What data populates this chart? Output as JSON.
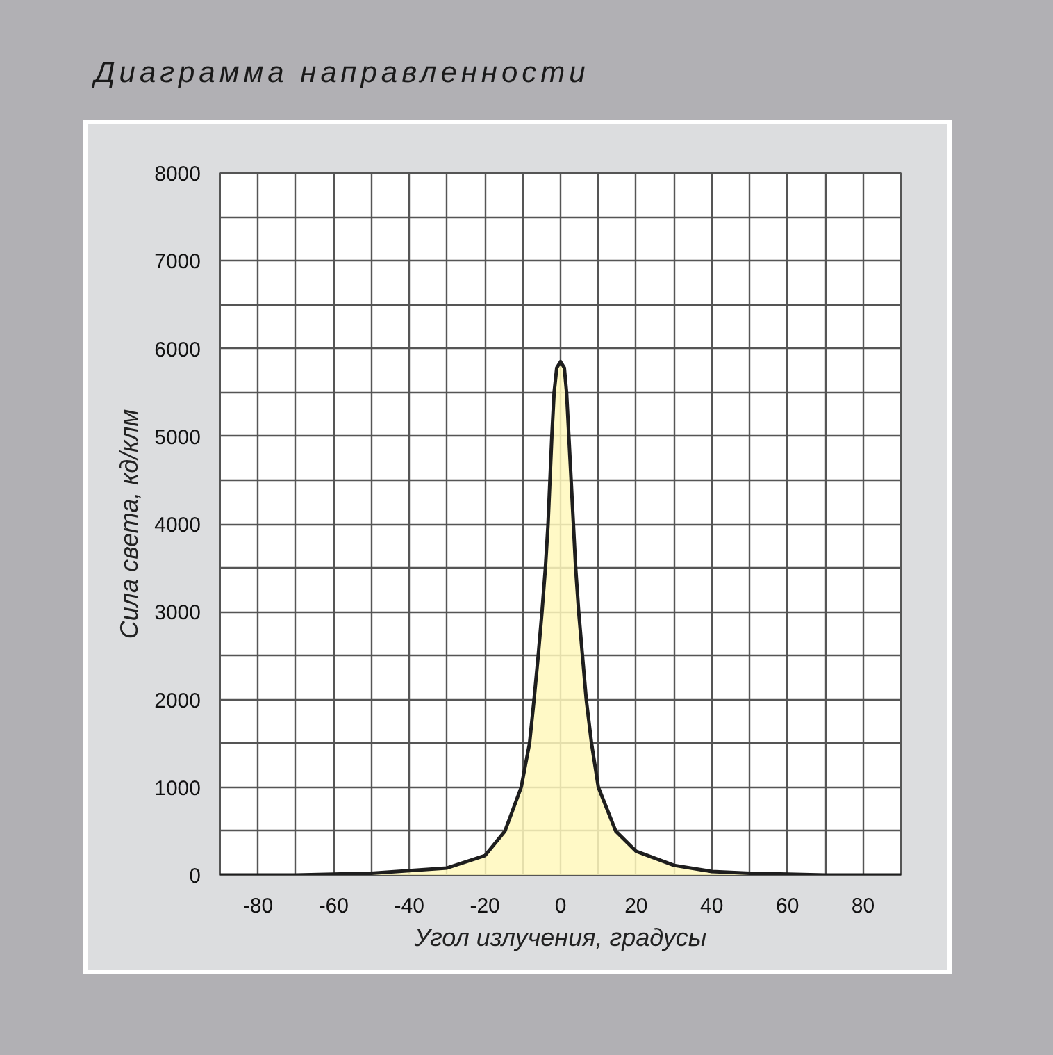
{
  "chart_data": {
    "type": "area",
    "title": "Диаграмма направленности",
    "xlabel": "Угол излучения, градусы",
    "ylabel": "Сила света, кд/клм",
    "x": [
      -90,
      -70,
      -60,
      -50,
      -40,
      -30,
      -20,
      -14.7,
      -10.4,
      -8.2,
      -7.0,
      -5.9,
      -4.9,
      -4.0,
      -3.3,
      -2.8,
      -2.3,
      -1.7,
      -1,
      0,
      1,
      1.6,
      2.2,
      2.8,
      3.4,
      4.0,
      4.8,
      5.8,
      6.8,
      8.2,
      10,
      14.6,
      20,
      30,
      40,
      50,
      60,
      70,
      90
    ],
    "series": [
      {
        "color": "#fff8bc",
        "values": [
          0,
          0,
          10,
          20,
          50,
          80,
          220,
          500,
          1000,
          1500,
          2000,
          2500,
          3000,
          3500,
          4000,
          4500,
          5000,
          5500,
          5780,
          5850,
          5780,
          5500,
          5000,
          4500,
          4000,
          3500,
          3000,
          2500,
          2000,
          1500,
          1000,
          500,
          270,
          110,
          40,
          20,
          10,
          0,
          0
        ]
      }
    ],
    "xlim": [
      -90,
      90
    ],
    "xticks": [
      {
        "value": -90,
        "label": null
      },
      -80,
      {
        "value": -70,
        "label": null
      },
      -60,
      {
        "value": -50,
        "label": null
      },
      -40,
      {
        "value": -30,
        "label": null
      },
      -20,
      {
        "value": -10,
        "label": null
      },
      0,
      {
        "value": 10,
        "label": null
      },
      20,
      {
        "value": 30,
        "label": null
      },
      40,
      {
        "value": 50,
        "label": null
      },
      60,
      {
        "value": 70,
        "label": null
      },
      80,
      {
        "value": 90,
        "label": null
      }
    ],
    "ylim": [
      0,
      8000
    ],
    "yticks": [
      0,
      {
        "value": 500,
        "label": null
      },
      1000,
      {
        "value": 1500,
        "label": null
      },
      2000,
      {
        "value": 2500,
        "label": null
      },
      3000,
      {
        "value": 3500,
        "label": null
      },
      4000,
      {
        "value": 4500,
        "label": null
      },
      5000,
      {
        "value": 5500,
        "label": null
      },
      6000,
      {
        "value": 6500,
        "label": null
      },
      7000,
      {
        "value": 7500,
        "label": null
      },
      8000
    ],
    "grid": true,
    "line_style": "solid",
    "marker": "none"
  }
}
